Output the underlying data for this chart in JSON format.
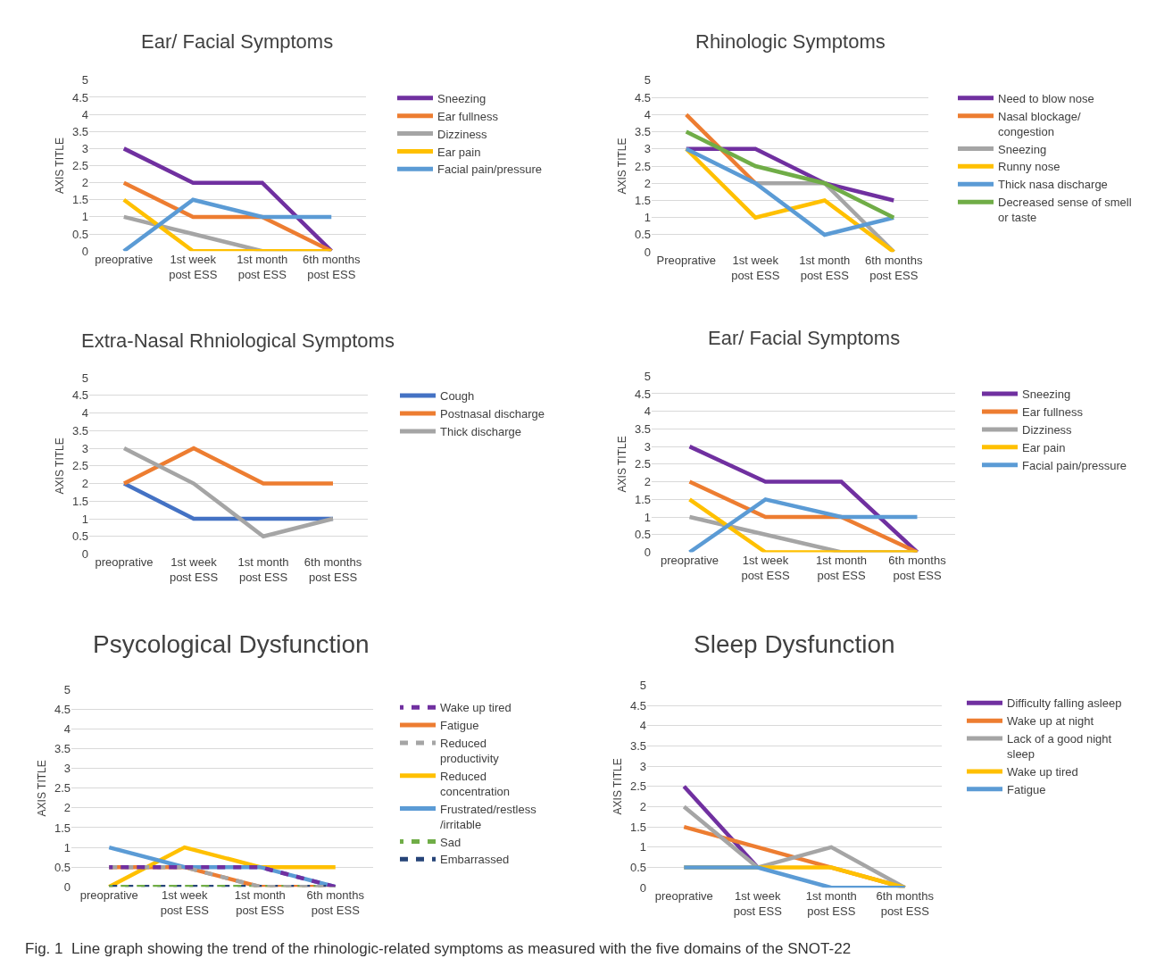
{
  "chart_data": [
    {
      "type": "line",
      "title": "Ear/ Facial Symptoms",
      "ylabel": "AXIS TITLE",
      "categories": [
        "preoprative",
        "1st week\npost ESS",
        "1st month\npost ESS",
        "6th months\npost ESS"
      ],
      "ylim": [
        0,
        5
      ],
      "yticks": [
        0,
        0.5,
        1,
        1.5,
        2,
        2.5,
        3,
        3.5,
        4,
        4.5,
        5
      ],
      "grid": "y",
      "legend": "right",
      "line_style": "solid",
      "marker": "none",
      "series": [
        {
          "name": "Sneezing",
          "color": "#7030a0",
          "values": [
            3,
            2,
            2,
            0
          ]
        },
        {
          "name": "Ear fullness",
          "color": "#ed7d31",
          "values": [
            2,
            1,
            1,
            0
          ]
        },
        {
          "name": "Dizziness",
          "color": "#a5a5a5",
          "values": [
            1,
            0.5,
            0,
            0
          ]
        },
        {
          "name": "Ear pain",
          "color": "#ffc000",
          "values": [
            1.5,
            0,
            0,
            0
          ]
        },
        {
          "name": "Facial pain/pressure",
          "color": "#5b9bd5",
          "values": [
            0,
            1.5,
            1,
            1
          ]
        }
      ]
    },
    {
      "type": "line",
      "title": "Rhinologic Symptoms",
      "ylabel": "AXIS TITLE",
      "categories": [
        "Preoprative",
        "1st week\npost ESS",
        "1st month\npost ESS",
        "6th months\npost ESS"
      ],
      "ylim": [
        0,
        5
      ],
      "yticks": [
        0,
        0.5,
        1,
        1.5,
        2,
        2.5,
        3,
        3.5,
        4,
        4.5,
        5
      ],
      "grid": "y",
      "legend": "right",
      "line_style": "solid",
      "marker": "none",
      "series": [
        {
          "name": "Need to blow nose",
          "color": "#7030a0",
          "values": [
            3,
            3,
            2,
            1.5
          ]
        },
        {
          "name": "Nasal blockage/\ncongestion",
          "color": "#ed7d31",
          "values": [
            4,
            2,
            null,
            null
          ]
        },
        {
          "name": "Sneezing",
          "color": "#a5a5a5",
          "values": [
            null,
            2,
            2,
            0
          ]
        },
        {
          "name": "Runny nose",
          "color": "#ffc000",
          "values": [
            3,
            1,
            1.5,
            0
          ]
        },
        {
          "name": "Thick nasa discharge",
          "color": "#5b9bd5",
          "values": [
            3,
            2,
            0.5,
            1
          ]
        },
        {
          "name": "Decreased sense of smell\nor taste",
          "color": "#70ad47",
          "values": [
            3.5,
            2.5,
            2,
            1
          ]
        }
      ]
    },
    {
      "type": "line",
      "title": "Extra-Nasal Rhniological Symptoms",
      "ylabel": "AXIS TITLE",
      "categories": [
        "preoprative",
        "1st week\npost ESS",
        "1st month\npost ESS",
        "6th months\npost ESS"
      ],
      "ylim": [
        0,
        5
      ],
      "yticks": [
        0,
        0.5,
        1,
        1.5,
        2,
        2.5,
        3,
        3.5,
        4,
        4.5,
        5
      ],
      "grid": "y",
      "legend": "right",
      "line_style": "solid",
      "marker": "none",
      "series": [
        {
          "name": "Cough",
          "color": "#4472c4",
          "values": [
            2,
            1,
            1,
            1
          ]
        },
        {
          "name": "Postnasal discharge",
          "color": "#ed7d31",
          "values": [
            2,
            3,
            2,
            2
          ]
        },
        {
          "name": "Thick discharge",
          "color": "#a5a5a5",
          "values": [
            3,
            2,
            0.5,
            1
          ]
        }
      ]
    },
    {
      "type": "line",
      "title": "Ear/ Facial Symptoms",
      "ylabel": "AXIS TITLE",
      "categories": [
        "preoprative",
        "1st week\npost ESS",
        "1st month\npost ESS",
        "6th months\npost ESS"
      ],
      "ylim": [
        0,
        5
      ],
      "yticks": [
        0,
        0.5,
        1,
        1.5,
        2,
        2.5,
        3,
        3.5,
        4,
        4.5,
        5
      ],
      "grid": "y",
      "legend": "right",
      "line_style": "solid",
      "marker": "none",
      "series": [
        {
          "name": "Sneezing",
          "color": "#7030a0",
          "values": [
            3,
            2,
            2,
            0
          ]
        },
        {
          "name": "Ear fullness",
          "color": "#ed7d31",
          "values": [
            2,
            1,
            1,
            0
          ]
        },
        {
          "name": "Dizziness",
          "color": "#a5a5a5",
          "values": [
            1,
            0.5,
            0,
            0
          ]
        },
        {
          "name": "Ear pain",
          "color": "#ffc000",
          "values": [
            1.5,
            0,
            0,
            0
          ]
        },
        {
          "name": "Facial pain/pressure",
          "color": "#5b9bd5",
          "values": [
            0,
            1.5,
            1,
            1
          ]
        }
      ]
    },
    {
      "type": "line",
      "title": "Psycological Dysfunction",
      "ylabel": "AXIS TITLE",
      "categories": [
        "preoprative",
        "1st week\npost ESS",
        "1st month\npost ESS",
        "6th months\npost ESS"
      ],
      "ylim": [
        0,
        5
      ],
      "yticks": [
        0,
        0.5,
        1,
        1.5,
        2,
        2.5,
        3,
        3.5,
        4,
        4.5,
        5
      ],
      "grid": "y",
      "legend": "right",
      "marker": "none",
      "series": [
        {
          "name": "Wake up tired",
          "color": "#7030a0",
          "line_style": "dashed",
          "values": [
            0.5,
            0.5,
            0.5,
            0
          ]
        },
        {
          "name": "Fatigue",
          "color": "#ed7d31",
          "line_style": "solid",
          "values": [
            0.5,
            0.5,
            0,
            0
          ]
        },
        {
          "name": "Reduced\nproductivity",
          "color": "#a5a5a5",
          "line_style": "dashed",
          "values": [
            0.5,
            0.5,
            0,
            0
          ]
        },
        {
          "name": "Reduced\nconcentration",
          "color": "#ffc000",
          "line_style": "solid",
          "values": [
            0,
            1,
            0.5,
            0.5
          ]
        },
        {
          "name": "Frustrated/restless\n/irritable",
          "color": "#5b9bd5",
          "line_style": "solid",
          "values": [
            1,
            0.5,
            0.5,
            0
          ]
        },
        {
          "name": "Sad",
          "color": "#70ad47",
          "line_style": "dashed",
          "values": [
            0,
            0,
            0,
            0
          ]
        },
        {
          "name": "Embarrassed",
          "color": "#264478",
          "line_style": "dashed",
          "values": [
            0,
            0,
            0,
            0
          ]
        }
      ]
    },
    {
      "type": "line",
      "title": "Sleep Dysfunction",
      "ylabel": "AXIS TITLE",
      "categories": [
        "preoprative",
        "1st week\npost ESS",
        "1st month\npost ESS",
        "6th months\npost ESS"
      ],
      "ylim": [
        0,
        5
      ],
      "yticks": [
        0,
        0.5,
        1,
        1.5,
        2,
        2.5,
        3,
        3.5,
        4,
        4.5,
        5
      ],
      "grid": "y",
      "legend": "right",
      "line_style": "solid",
      "marker": "none",
      "annotations": [
        "Fig. 1  Line graph showing the trend of the rhinologic-related symptoms as measured with the five domains of the SNOT-22"
      ],
      "series": [
        {
          "name": "Difficulty falling asleep",
          "color": "#7030a0",
          "values": [
            2.5,
            0.5,
            null,
            null
          ]
        },
        {
          "name": "Wake up at night",
          "color": "#ed7d31",
          "values": [
            1.5,
            1,
            0.5,
            0
          ]
        },
        {
          "name": "Lack of a good night\nsleep",
          "color": "#a5a5a5",
          "values": [
            2,
            0.5,
            1,
            0
          ]
        },
        {
          "name": "Wake up tired",
          "color": "#ffc000",
          "values": [
            0.5,
            0.5,
            0.5,
            0
          ]
        },
        {
          "name": "Fatigue",
          "color": "#5b9bd5",
          "values": [
            0.5,
            0.5,
            0,
            0
          ]
        }
      ]
    }
  ]
}
